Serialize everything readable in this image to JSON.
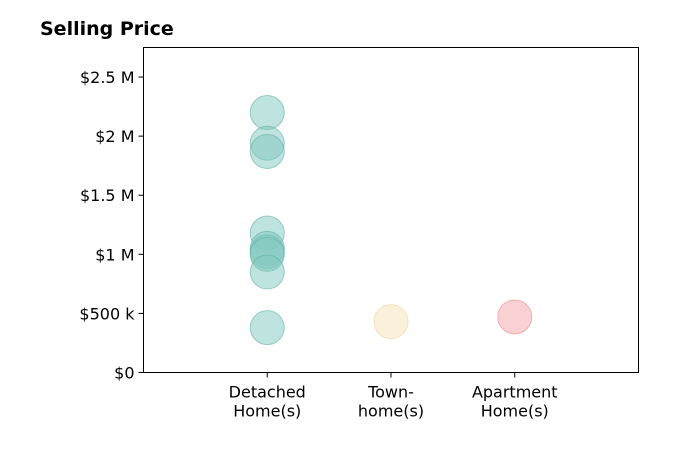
{
  "chart_data": {
    "type": "scatter",
    "title": "Selling Price",
    "xlabel": "",
    "ylabel": "",
    "ylim": [
      0,
      2750000
    ],
    "y_ticks": [
      {
        "value": 0,
        "label": "$0"
      },
      {
        "value": 500000,
        "label": "$500 k"
      },
      {
        "value": 1000000,
        "label": "$1 M"
      },
      {
        "value": 1500000,
        "label": "$1.5 M"
      },
      {
        "value": 2000000,
        "label": "$2 M"
      },
      {
        "value": 2500000,
        "label": "$2.5 M"
      }
    ],
    "categories": [
      {
        "lines": [
          "Detached",
          "Home(s)"
        ]
      },
      {
        "lines": [
          "Town-",
          "home(s)"
        ]
      },
      {
        "lines": [
          "Apartment",
          "Home(s)"
        ]
      }
    ],
    "grid": false,
    "legend": "none",
    "series": [
      {
        "category_index": 0,
        "color": "#7fc7bd",
        "stroke": "#5fb3a8",
        "values": [
          2200000,
          1940000,
          1870000,
          1180000,
          1050000,
          1020000,
          1000000,
          850000,
          380000
        ]
      },
      {
        "category_index": 1,
        "color": "#f7e3b8",
        "stroke": "#efd49a",
        "values": [
          430000
        ]
      },
      {
        "category_index": 2,
        "color": "#f4a3a8",
        "stroke": "#e98a91",
        "values": [
          470000
        ]
      }
    ]
  }
}
